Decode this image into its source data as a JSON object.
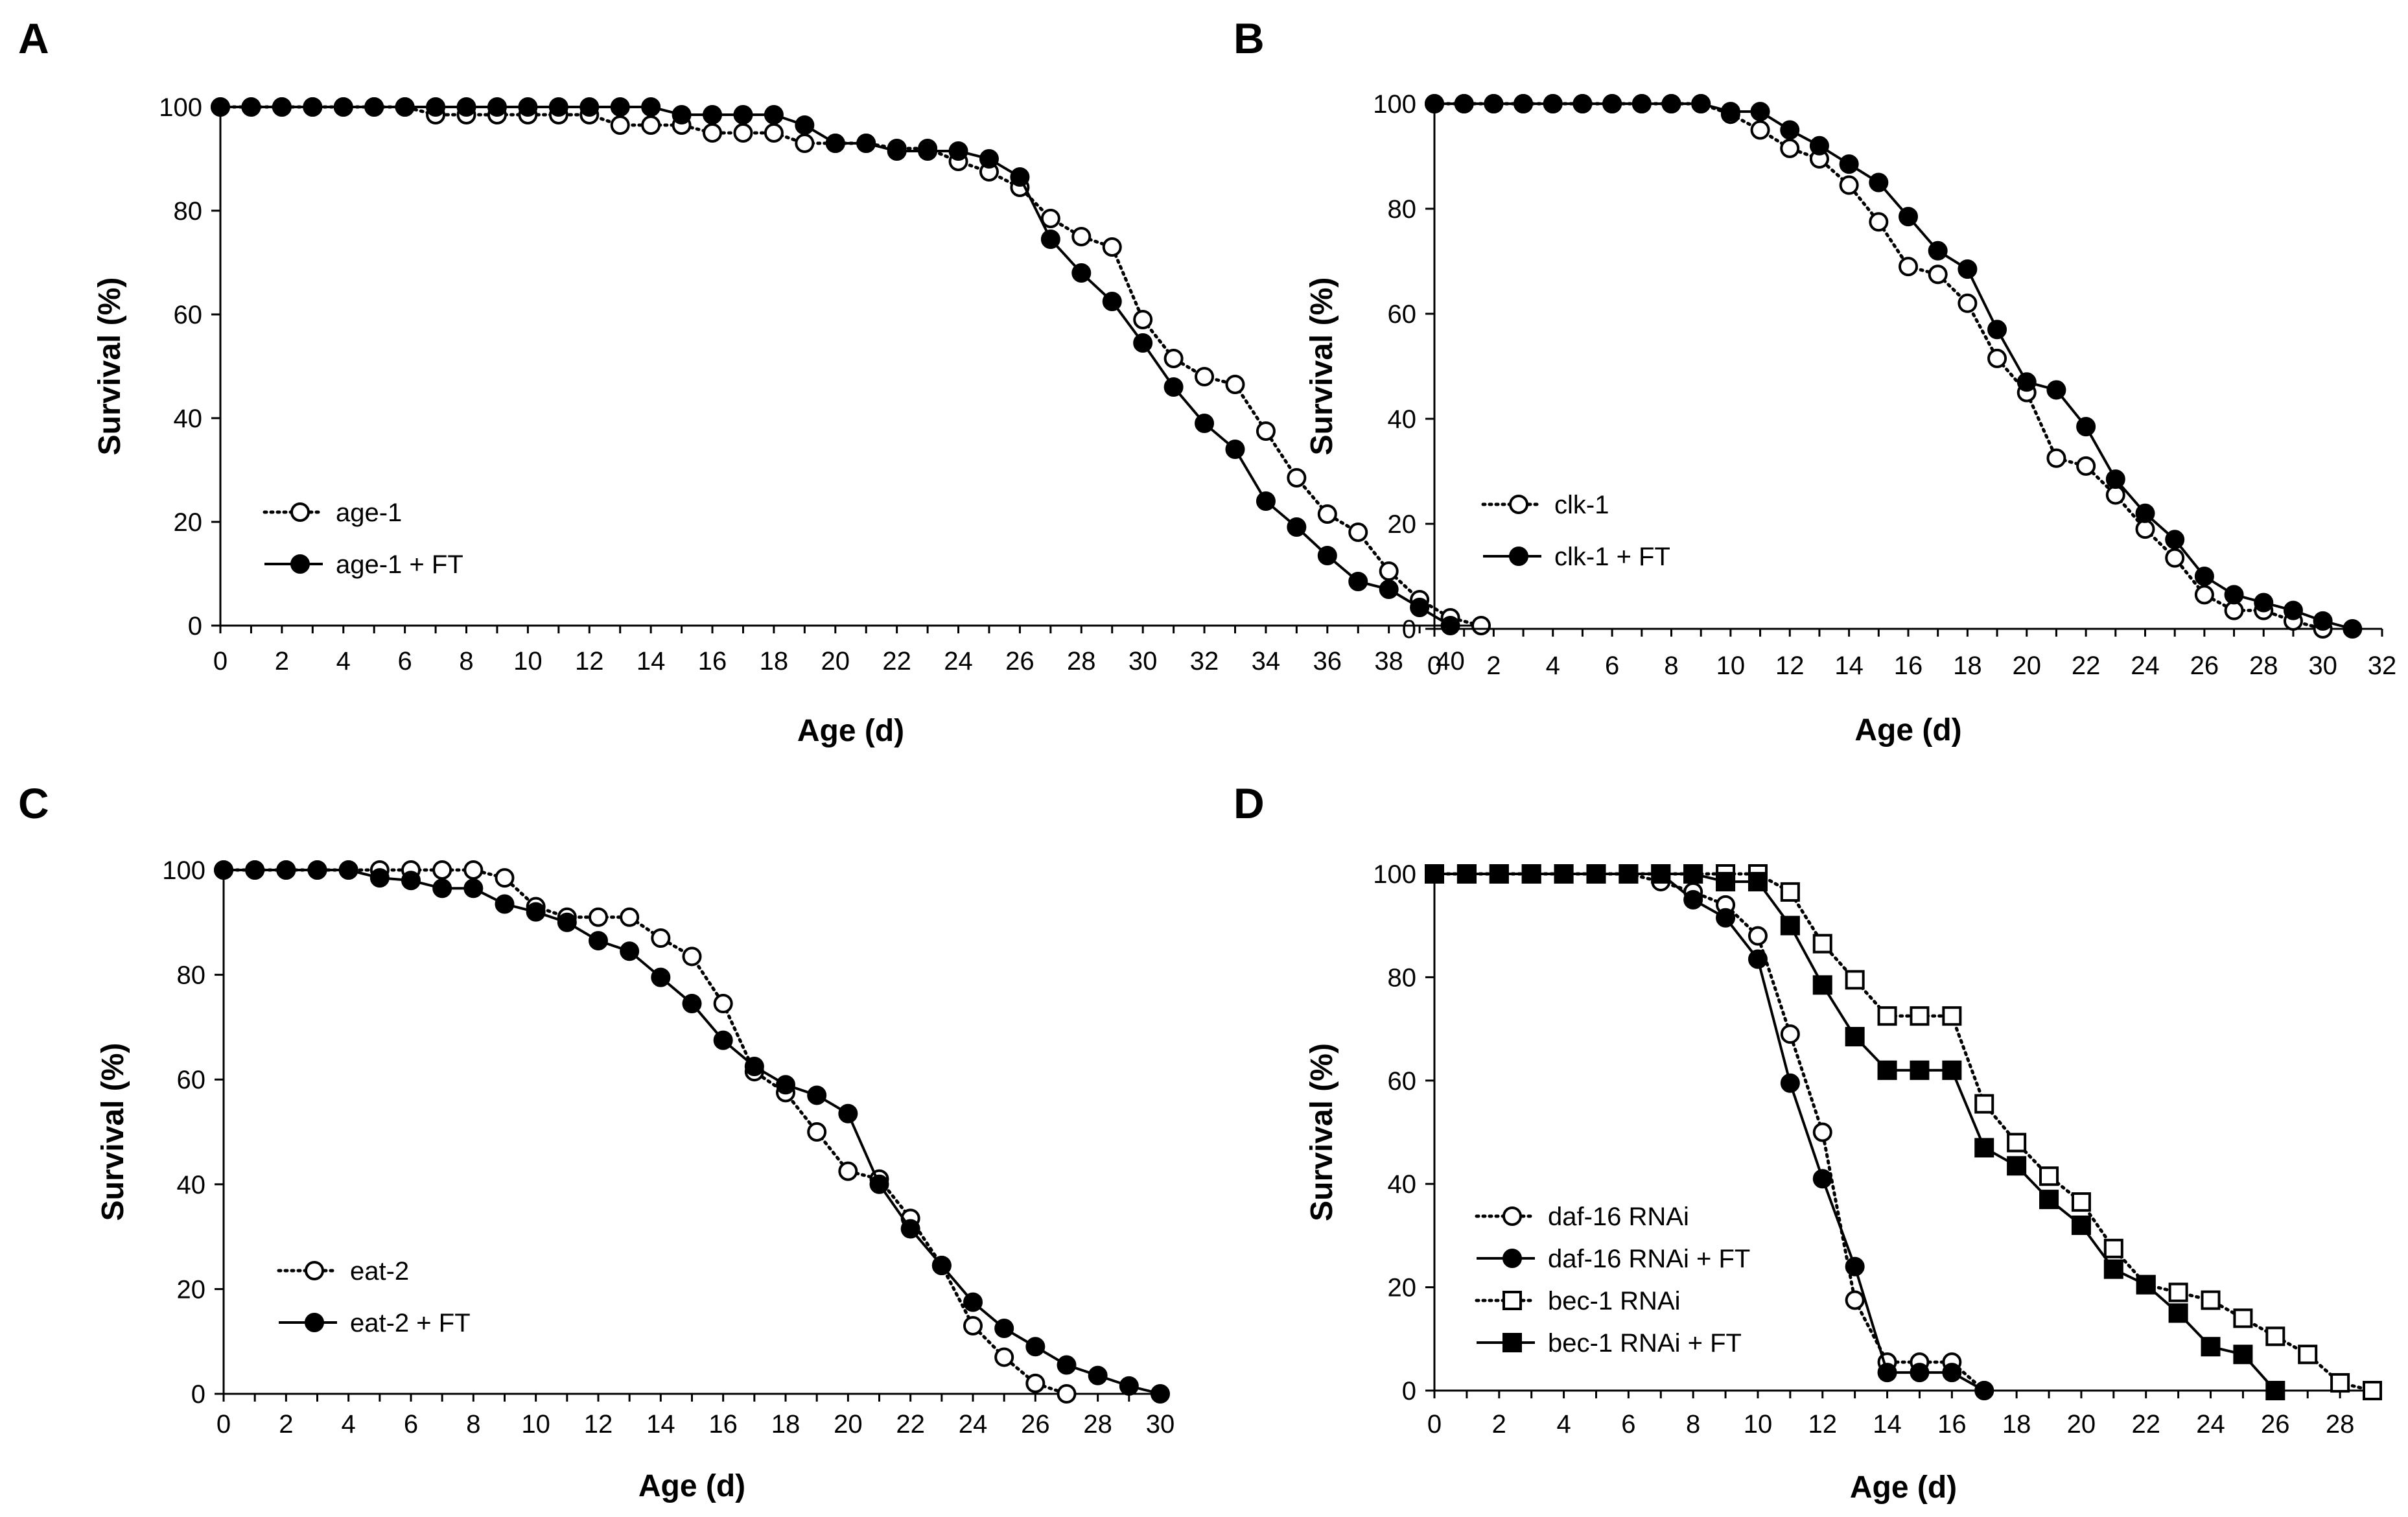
{
  "chart_data": [
    {
      "type": "line",
      "panel": "A",
      "xlabel": "Age (d)",
      "ylabel": "Survival (%)",
      "xlim": [
        0,
        41
      ],
      "ylim": [
        0,
        100
      ],
      "xticks": [
        0,
        2,
        4,
        6,
        8,
        10,
        12,
        14,
        16,
        18,
        20,
        22,
        24,
        26,
        28,
        30,
        32,
        34,
        36,
        38,
        40
      ],
      "yticks": [
        0,
        20,
        40,
        60,
        80,
        100
      ],
      "legend_position": "bottom-left",
      "series": [
        {
          "name": "age-1",
          "style": "dotted",
          "marker": "open-circle",
          "x": [
            0,
            1,
            2,
            3,
            4,
            5,
            6,
            7,
            8,
            9,
            10,
            11,
            12,
            13,
            14,
            15,
            16,
            17,
            18,
            19,
            20,
            21,
            22,
            23,
            24,
            25,
            26,
            27,
            28,
            29,
            30,
            31,
            32,
            33,
            34,
            35,
            36,
            37,
            38,
            39,
            40,
            41
          ],
          "y": [
            100,
            100,
            100,
            100,
            100,
            100,
            100,
            98.5,
            98.5,
            98.5,
            98.5,
            98.5,
            98.5,
            96.5,
            96.5,
            96.5,
            95,
            95,
            95,
            93,
            93,
            93,
            92,
            92,
            89.5,
            87.5,
            84.5,
            78.5,
            75,
            73,
            59,
            51.5,
            48,
            46.5,
            37.5,
            28.5,
            21.5,
            18,
            10.5,
            5,
            1.5,
            0
          ]
        },
        {
          "name": "age-1 + FT",
          "style": "solid",
          "marker": "filled-circle",
          "x": [
            0,
            1,
            2,
            3,
            4,
            5,
            6,
            7,
            8,
            9,
            10,
            11,
            12,
            13,
            14,
            15,
            16,
            17,
            18,
            19,
            20,
            21,
            22,
            23,
            24,
            25,
            26,
            27,
            28,
            29,
            30,
            31,
            32,
            33,
            34,
            35,
            36,
            37,
            38,
            39,
            40
          ],
          "y": [
            100,
            100,
            100,
            100,
            100,
            100,
            100,
            100,
            100,
            100,
            100,
            100,
            100,
            100,
            100,
            98.5,
            98.5,
            98.5,
            98.5,
            96.5,
            93,
            93,
            91.5,
            91.5,
            91.5,
            90,
            86.5,
            74.5,
            68,
            62.5,
            54.5,
            46,
            39,
            34,
            24,
            19,
            13.5,
            8.5,
            7,
            3.5,
            0
          ]
        }
      ]
    },
    {
      "type": "line",
      "panel": "B",
      "xlabel": "Age (d)",
      "ylabel": "Survival (%)",
      "xlim": [
        0,
        32
      ],
      "ylim": [
        0,
        100
      ],
      "xticks": [
        0,
        2,
        4,
        6,
        8,
        10,
        12,
        14,
        16,
        18,
        20,
        22,
        24,
        26,
        28,
        30,
        32
      ],
      "yticks": [
        0,
        20,
        40,
        60,
        80,
        100
      ],
      "legend_position": "bottom-left",
      "series": [
        {
          "name": "clk-1",
          "style": "dotted",
          "marker": "open-circle",
          "x": [
            0,
            1,
            2,
            3,
            4,
            5,
            6,
            7,
            8,
            9,
            10,
            11,
            12,
            13,
            14,
            15,
            16,
            17,
            18,
            19,
            20,
            21,
            22,
            23,
            24,
            25,
            26,
            27,
            28,
            29,
            30
          ],
          "y": [
            100,
            100,
            100,
            100,
            100,
            100,
            100,
            100,
            100,
            100,
            98,
            95,
            91.5,
            89.5,
            84.5,
            77.5,
            69,
            67.5,
            62,
            51.5,
            45,
            32.5,
            31,
            25.5,
            19,
            13.5,
            6.5,
            3.5,
            3.5,
            1.5,
            0
          ]
        },
        {
          "name": "clk-1 + FT",
          "style": "solid",
          "marker": "filled-circle",
          "x": [
            0,
            1,
            2,
            3,
            4,
            5,
            6,
            7,
            8,
            9,
            10,
            11,
            12,
            13,
            14,
            15,
            16,
            17,
            18,
            19,
            20,
            21,
            22,
            23,
            24,
            25,
            26,
            27,
            28,
            29,
            30,
            31
          ],
          "y": [
            100,
            100,
            100,
            100,
            100,
            100,
            100,
            100,
            100,
            100,
            98.5,
            98.5,
            95,
            92,
            88.5,
            85,
            78.5,
            72,
            68.5,
            57,
            47,
            45.5,
            38.5,
            28.5,
            22,
            17,
            10,
            6.5,
            5,
            3.5,
            1.5,
            0
          ]
        }
      ]
    },
    {
      "type": "line",
      "panel": "C",
      "xlabel": "Age (d)",
      "ylabel": "Survival (%)",
      "xlim": [
        0,
        30
      ],
      "ylim": [
        0,
        100
      ],
      "xticks": [
        0,
        2,
        4,
        6,
        8,
        10,
        12,
        14,
        16,
        18,
        20,
        22,
        24,
        26,
        28,
        30
      ],
      "yticks": [
        0,
        20,
        40,
        60,
        80,
        100
      ],
      "legend_position": "bottom-left",
      "series": [
        {
          "name": "eat-2",
          "style": "dotted",
          "marker": "open-circle",
          "x": [
            0,
            1,
            2,
            3,
            4,
            5,
            6,
            7,
            8,
            9,
            10,
            11,
            12,
            13,
            14,
            15,
            16,
            17,
            18,
            19,
            20,
            21,
            22,
            23,
            24,
            25,
            26,
            27
          ],
          "y": [
            100,
            100,
            100,
            100,
            100,
            100,
            100,
            100,
            100,
            98.5,
            93,
            91,
            91,
            91,
            87,
            83.5,
            74.5,
            61.5,
            57.5,
            50,
            42.5,
            41,
            33.5,
            24.5,
            13,
            7,
            2,
            0
          ]
        },
        {
          "name": "eat-2 + FT",
          "style": "solid",
          "marker": "filled-circle",
          "x": [
            0,
            1,
            2,
            3,
            4,
            5,
            6,
            7,
            8,
            9,
            10,
            11,
            12,
            13,
            14,
            15,
            16,
            17,
            18,
            19,
            20,
            21,
            22,
            23,
            24,
            25,
            26,
            27,
            28,
            29,
            30
          ],
          "y": [
            100,
            100,
            100,
            100,
            100,
            98.5,
            98,
            96.5,
            96.5,
            93.5,
            92,
            90,
            86.5,
            84.5,
            79.5,
            74.5,
            67.5,
            62.5,
            59,
            57,
            53.5,
            40,
            31.5,
            24.5,
            17.5,
            12.5,
            9,
            5.5,
            3.5,
            1.5,
            0
          ]
        }
      ]
    },
    {
      "type": "line",
      "panel": "D",
      "xlabel": "Age (d)",
      "ylabel": "Survival (%)",
      "xlim": [
        0,
        29
      ],
      "ylim": [
        0,
        100
      ],
      "xticks": [
        0,
        2,
        4,
        6,
        8,
        10,
        12,
        14,
        16,
        18,
        20,
        22,
        24,
        26,
        28
      ],
      "yticks": [
        0,
        20,
        40,
        60,
        80,
        100
      ],
      "legend_position": "bottom-left",
      "series": [
        {
          "name": "daf-16 RNAi",
          "style": "dotted",
          "marker": "open-circle",
          "x": [
            0,
            1,
            2,
            3,
            4,
            5,
            6,
            7,
            8,
            9,
            10,
            11,
            12,
            13,
            14,
            15,
            16,
            17
          ],
          "y": [
            100,
            100,
            100,
            100,
            100,
            100,
            100,
            98.5,
            96.5,
            94,
            88,
            69,
            50,
            17.5,
            5.5,
            5.5,
            5.5,
            0
          ]
        },
        {
          "name": "daf-16 RNAi + FT",
          "style": "solid",
          "marker": "filled-circle",
          "x": [
            0,
            1,
            2,
            3,
            4,
            5,
            6,
            7,
            8,
            9,
            10,
            11,
            12,
            13,
            14,
            15,
            16,
            17
          ],
          "y": [
            100,
            100,
            100,
            100,
            100,
            100,
            100,
            100,
            95,
            91.5,
            83.5,
            59.5,
            41,
            24,
            3.5,
            3.5,
            3.5,
            0
          ]
        },
        {
          "name": "bec-1 RNAi",
          "style": "dotted",
          "marker": "open-square",
          "x": [
            0,
            1,
            2,
            3,
            4,
            5,
            6,
            7,
            8,
            9,
            10,
            11,
            12,
            13,
            14,
            15,
            16,
            17,
            18,
            19,
            20,
            21,
            22,
            23,
            24,
            25,
            26,
            27,
            28,
            29
          ],
          "y": [
            100,
            100,
            100,
            100,
            100,
            100,
            100,
            100,
            100,
            100,
            100,
            96.5,
            86.5,
            79.5,
            72.5,
            72.5,
            72.5,
            55.5,
            48,
            41.5,
            36.5,
            27.5,
            20.5,
            19,
            17.5,
            14,
            10.5,
            7,
            1.5,
            0
          ]
        },
        {
          "name": "bec-1 RNAi + FT",
          "style": "solid",
          "marker": "filled-square",
          "x": [
            0,
            1,
            2,
            3,
            4,
            5,
            6,
            7,
            8,
            9,
            10,
            11,
            12,
            13,
            14,
            15,
            16,
            17,
            18,
            19,
            20,
            21,
            22,
            23,
            24,
            25,
            26
          ],
          "y": [
            100,
            100,
            100,
            100,
            100,
            100,
            100,
            100,
            100,
            98.5,
            98.5,
            90,
            78.5,
            68.5,
            62,
            62,
            62,
            47,
            43.5,
            37,
            32,
            23.5,
            20.5,
            15,
            8.5,
            7,
            0
          ]
        }
      ]
    }
  ]
}
